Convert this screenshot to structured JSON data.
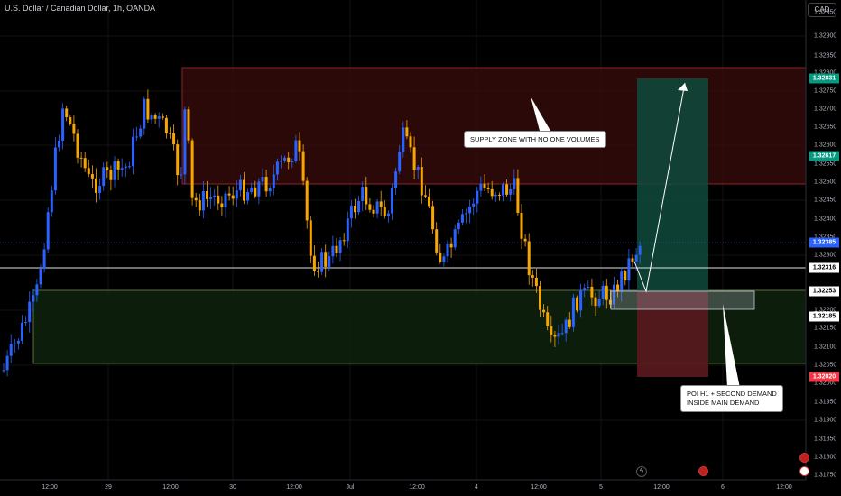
{
  "header": {
    "title": "U.S. Dollar / Canadian Dollar, 1h, OANDA",
    "currency": "CAD"
  },
  "price_axis": {
    "ticks": [
      "1.32950",
      "1.32900",
      "1.32850",
      "1.32800",
      "1.32750",
      "1.32700",
      "1.32650",
      "1.32600",
      "1.32550",
      "1.32500",
      "1.32450",
      "1.32400",
      "1.32350",
      "1.32300",
      "1.32200",
      "1.32150",
      "1.32100",
      "1.32050",
      "1.32000",
      "1.31950",
      "1.31900",
      "1.31850",
      "1.31800",
      "1.31750"
    ],
    "tags": [
      {
        "label": "1.32831",
        "color": "#089981",
        "text": "#ffffff"
      },
      {
        "label": "1.32617",
        "color": "#089981",
        "text": "#ffffff"
      },
      {
        "label": "1.32385",
        "color": "#2962ff",
        "text": "#ffffff"
      },
      {
        "label": "1.32316",
        "color": "#ffffff",
        "text": "#000000"
      },
      {
        "label": "1.32253",
        "color": "#ffffff",
        "text": "#000000"
      },
      {
        "label": "1.32185",
        "color": "#ffffff",
        "text": "#000000"
      },
      {
        "label": "1.32020",
        "color": "#f23645",
        "text": "#ffffff"
      }
    ]
  },
  "time_axis": {
    "ticks": [
      "12:00",
      "29",
      "12:00",
      "30",
      "12:00",
      "Jul",
      "12:00",
      "4",
      "12:00",
      "5",
      "12:00",
      "6",
      "12:00"
    ]
  },
  "annotations": {
    "supply": "SUPPLY ZONE WITH NO ONE VOLUMES",
    "poi_line1": "POI H1 + SECOND DEMAND",
    "poi_line2": "INSIDE MAIN DEMAND"
  },
  "colors": {
    "bull": "#2962ff",
    "bear": "#f7a600",
    "supply": "#3a0c0c",
    "demand": "#0e220e"
  },
  "icons": [
    "flash-icon",
    "us-flag-icon",
    "ca-flag-icon"
  ]
}
